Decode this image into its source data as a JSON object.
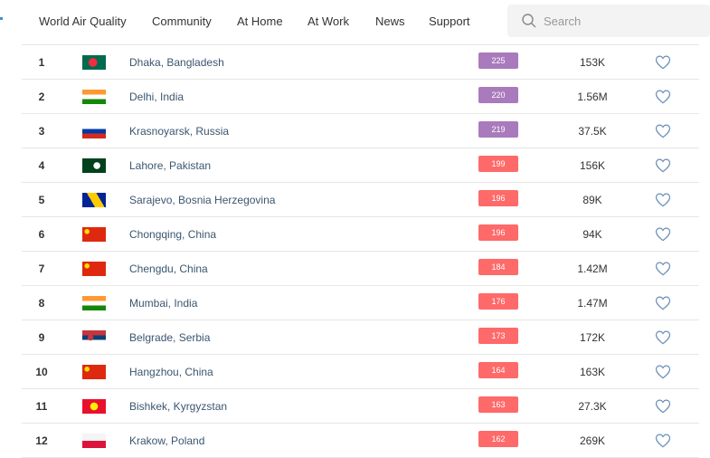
{
  "nav": {
    "items": [
      "World Air Quality",
      "Community",
      "At Home",
      "At Work",
      "News",
      "Support"
    ],
    "search_placeholder": "Search"
  },
  "table": {
    "rows": [
      {
        "rank": 1,
        "city": "Dhaka, Bangladesh",
        "aqi": 225,
        "aqi_color": "#a97abc",
        "followers": "153K"
      },
      {
        "rank": 2,
        "city": "Delhi, India",
        "aqi": 220,
        "aqi_color": "#a97abc",
        "followers": "1.56M"
      },
      {
        "rank": 3,
        "city": "Krasnoyarsk, Russia",
        "aqi": 219,
        "aqi_color": "#a97abc",
        "followers": "37.5K"
      },
      {
        "rank": 4,
        "city": "Lahore, Pakistan",
        "aqi": 199,
        "aqi_color": "#fe6a69",
        "followers": "156K"
      },
      {
        "rank": 5,
        "city": "Sarajevo, Bosnia Herzegovina",
        "aqi": 196,
        "aqi_color": "#fe6a69",
        "followers": "89K"
      },
      {
        "rank": 6,
        "city": "Chongqing, China",
        "aqi": 196,
        "aqi_color": "#fe6a69",
        "followers": "94K"
      },
      {
        "rank": 7,
        "city": "Chengdu, China",
        "aqi": 184,
        "aqi_color": "#fe6a69",
        "followers": "1.42M"
      },
      {
        "rank": 8,
        "city": "Mumbai, India",
        "aqi": 176,
        "aqi_color": "#fe6a69",
        "followers": "1.47M"
      },
      {
        "rank": 9,
        "city": "Belgrade, Serbia",
        "aqi": 173,
        "aqi_color": "#fe6a69",
        "followers": "172K"
      },
      {
        "rank": 10,
        "city": "Hangzhou, China",
        "aqi": 164,
        "aqi_color": "#fe6a69",
        "followers": "163K"
      },
      {
        "rank": 11,
        "city": "Bishkek, Kyrgyzstan",
        "aqi": 163,
        "aqi_color": "#fe6a69",
        "followers": "27.3K"
      },
      {
        "rank": 12,
        "city": "Krakow, Poland",
        "aqi": 162,
        "aqi_color": "#fe6a69",
        "followers": "269K"
      }
    ]
  }
}
